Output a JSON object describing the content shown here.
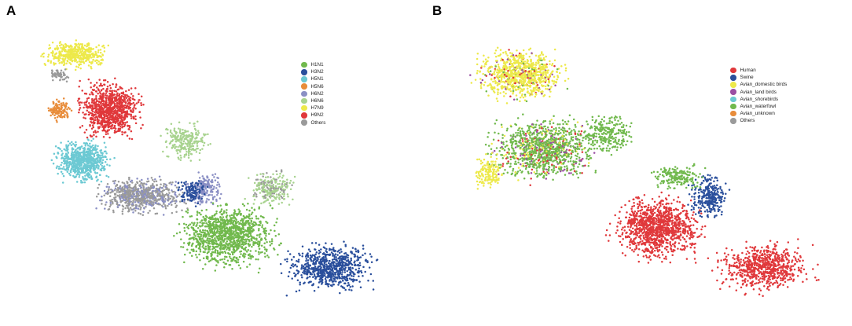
{
  "panel_a": {
    "letter": "A",
    "legend": [
      {
        "label": "H1N1",
        "color": "#71b94d"
      },
      {
        "label": "H3N2",
        "color": "#2a4f9c"
      },
      {
        "label": "H5N1",
        "color": "#6cc9d3"
      },
      {
        "label": "H5N6",
        "color": "#e88c3a"
      },
      {
        "label": "H6N2",
        "color": "#8a8fc4"
      },
      {
        "label": "H6N6",
        "color": "#a8d38f"
      },
      {
        "label": "H7N9",
        "color": "#ede94a"
      },
      {
        "label": "H9N2",
        "color": "#e0383b"
      },
      {
        "label": "Others",
        "color": "#9a9a9a"
      }
    ]
  },
  "panel_b": {
    "letter": "B",
    "legend": [
      {
        "label": "Human",
        "color": "#e0383b"
      },
      {
        "label": "Swine",
        "color": "#2a4f9c"
      },
      {
        "label": "Avian_domestic birds",
        "color": "#ede94a"
      },
      {
        "label": "Avian_land birds",
        "color": "#9b4fa3"
      },
      {
        "label": "Avian_shorebirds",
        "color": "#6cc9d3"
      },
      {
        "label": "Avian_waterfowl",
        "color": "#71b94d"
      },
      {
        "label": "Avian_unknown",
        "color": "#e88c3a"
      },
      {
        "label": "Others",
        "color": "#9a9a9a"
      }
    ]
  }
}
